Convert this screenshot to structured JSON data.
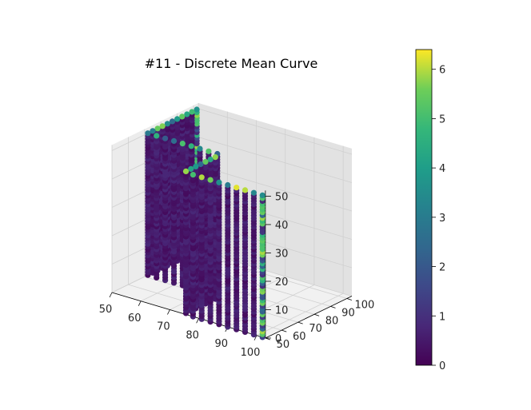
{
  "chart_data": {
    "type": "scatter",
    "projection": "3d",
    "title": "#11 - Discrete Mean Curve",
    "xlabel": "",
    "ylabel": "",
    "zlabel": "",
    "xlim": [
      50,
      103
    ],
    "ylim": [
      50,
      103
    ],
    "zlim": [
      0,
      52
    ],
    "x_ticks": [
      50,
      60,
      70,
      80,
      90,
      100
    ],
    "y_ticks": [
      50,
      60,
      70,
      80,
      90,
      100
    ],
    "z_ticks": [
      0,
      10,
      20,
      30,
      40,
      50
    ],
    "colormap": "viridis",
    "colorbar": {
      "range": [
        0,
        6.4
      ],
      "ticks": [
        0,
        1,
        2,
        3,
        4,
        5,
        6
      ]
    },
    "grid": true,
    "series": [
      {
        "description": "L-shaped discrete curve extruded vertically from z=0 to z=50",
        "x_range": [
          50,
          102
        ],
        "y_range": [
          50,
          102
        ],
        "z_range": [
          0,
          50
        ],
        "z_step": 1
      }
    ]
  }
}
